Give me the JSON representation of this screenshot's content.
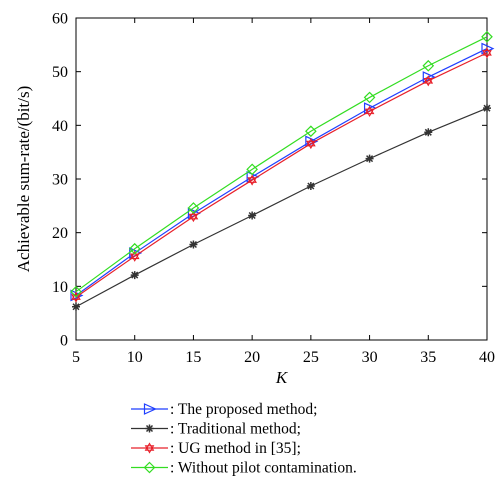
{
  "chart_data": {
    "type": "line",
    "xlabel": "K",
    "ylabel": "Achievable sum-rate/(bit/s)",
    "x": [
      5,
      10,
      15,
      20,
      25,
      30,
      35,
      40
    ],
    "xticks": [
      5,
      10,
      15,
      20,
      25,
      30,
      35,
      40
    ],
    "yticks": [
      0,
      10,
      20,
      30,
      40,
      50,
      60
    ],
    "xlim": [
      5,
      40
    ],
    "ylim": [
      0,
      60
    ],
    "grid": false,
    "legend_position": "bottom",
    "series": [
      {
        "name": ": The proposed method;",
        "color": "#1f3fff",
        "marker": "triangle-right",
        "values": [
          8.3,
          16.2,
          23.6,
          30.4,
          37.0,
          43.2,
          49.0,
          54.3
        ]
      },
      {
        "name": ": Traditional method;",
        "color": "#333333",
        "marker": "star",
        "values": [
          6.2,
          12.1,
          17.8,
          23.2,
          28.7,
          33.8,
          38.7,
          43.2
        ]
      },
      {
        "name": ": UG method in [35];",
        "color": "#e8202a",
        "marker": "hexagram",
        "values": [
          8.0,
          15.6,
          23.0,
          29.8,
          36.6,
          42.6,
          48.3,
          53.5
        ]
      },
      {
        "name": ": Without pilot contamination.",
        "color": "#33dd22",
        "marker": "diamond",
        "values": [
          9.0,
          17.0,
          24.6,
          31.8,
          38.9,
          45.2,
          51.1,
          56.5
        ]
      }
    ]
  }
}
